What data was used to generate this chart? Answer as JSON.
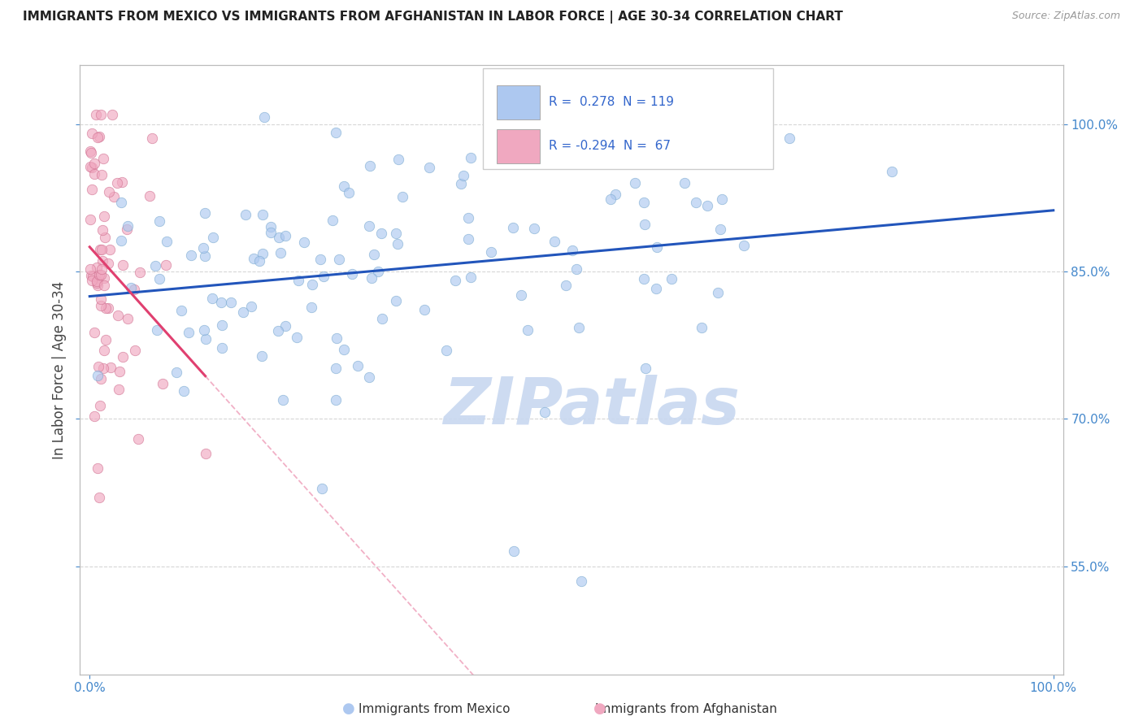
{
  "title": "IMMIGRANTS FROM MEXICO VS IMMIGRANTS FROM AFGHANISTAN IN LABOR FORCE | AGE 30-34 CORRELATION CHART",
  "source": "Source: ZipAtlas.com",
  "ylabel": "In Labor Force | Age 30-34",
  "watermark": "ZIPatlas",
  "mexico_color": "#adc8f0",
  "mexico_edge": "#7aaad0",
  "afghanistan_color": "#f0a8c0",
  "afghanistan_edge": "#d07090",
  "mexico_line_color": "#2255bb",
  "afghanistan_line_color": "#e04070",
  "afghanistan_dash_color": "#f0a8c0",
  "mexico_R": 0.278,
  "mexico_N": 119,
  "afghanistan_R": -0.294,
  "afghanistan_N": 67,
  "xlim": [
    -0.01,
    1.01
  ],
  "ylim": [
    0.44,
    1.06
  ],
  "yticks": [
    0.55,
    0.7,
    0.85,
    1.0
  ],
  "grid_color": "#cccccc",
  "background_color": "#ffffff",
  "title_color": "#222222",
  "tick_color": "#4488cc",
  "watermark_color": "#c8d8f0",
  "legend_box_color_mexico": "#adc8f0",
  "legend_box_color_afghanistan": "#f0a8c0",
  "legend_value_color": "#3366cc",
  "marker_size": 80,
  "marker_alpha": 0.65,
  "line_width": 2.2
}
